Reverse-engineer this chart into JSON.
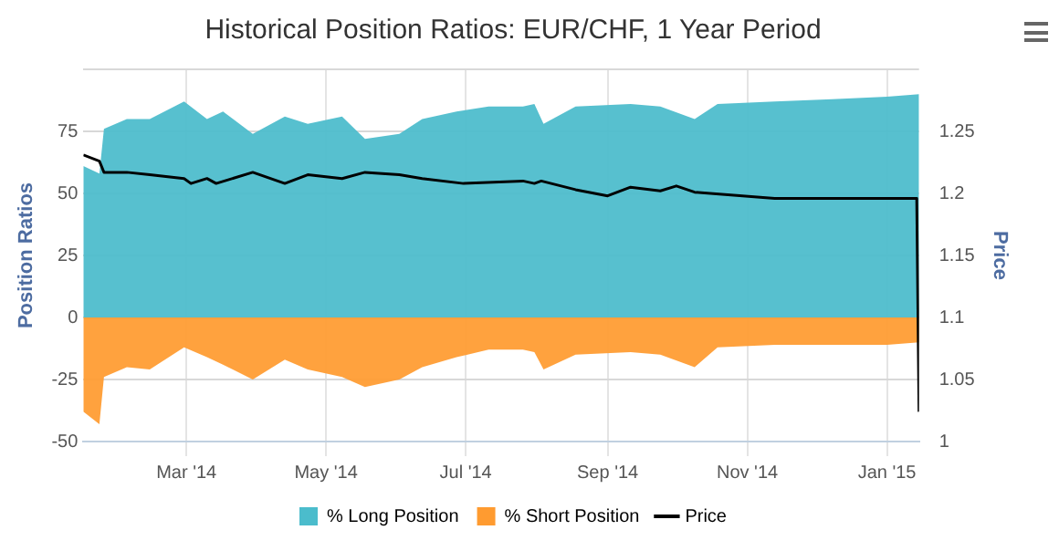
{
  "chart_data": {
    "type": "area",
    "title": "Historical Position Ratios: EUR/CHF, 1 Year Period",
    "ylabel": "Position Ratios",
    "y2label": "Price",
    "x": [
      "2014-01-15",
      "2014-01-22",
      "2014-01-24",
      "2014-02-03",
      "2014-02-13",
      "2014-02-28",
      "2014-03-10",
      "2014-03-17",
      "2014-03-30",
      "2014-04-13",
      "2014-04-23",
      "2014-05-08",
      "2014-05-18",
      "2014-06-02",
      "2014-06-12",
      "2014-06-27",
      "2014-07-11",
      "2014-07-26",
      "2014-07-31",
      "2014-08-04",
      "2014-08-18",
      "2014-09-11",
      "2014-09-24",
      "2014-10-09",
      "2014-10-19",
      "2014-11-13",
      "2014-12-08",
      "2015-01-01",
      "2015-01-15"
    ],
    "series": [
      {
        "name": "% Long Position",
        "color": "#4bbccc",
        "values": [
          61,
          58,
          76,
          80,
          80,
          87,
          80,
          83,
          74,
          81,
          78,
          81,
          72,
          74,
          80,
          83,
          85,
          85,
          86,
          78,
          85,
          86,
          85,
          80,
          86,
          87,
          88,
          89,
          90
        ]
      },
      {
        "name": "% Short Position",
        "color": "#ff9b30",
        "values": [
          -38,
          -43,
          -24,
          -20,
          -21,
          -12,
          -16,
          -19,
          -25,
          -17,
          -21,
          -24,
          -28,
          -25,
          -20,
          -16,
          -13,
          -13,
          -14,
          -21,
          -15,
          -14,
          -15,
          -20,
          -12,
          -11,
          -11,
          -11,
          -10
        ]
      },
      {
        "name": "Price",
        "type": "line",
        "axis": "y2",
        "color": "#000000",
        "x": [
          "2014-01-15",
          "2014-01-22",
          "2014-01-24",
          "2014-02-03",
          "2014-02-13",
          "2014-02-28",
          "2014-03-03",
          "2014-03-10",
          "2014-03-14",
          "2014-03-30",
          "2014-04-13",
          "2014-04-23",
          "2014-05-08",
          "2014-05-18",
          "2014-06-02",
          "2014-06-12",
          "2014-06-30",
          "2014-07-26",
          "2014-07-31",
          "2014-08-03",
          "2014-08-18",
          "2014-09-01",
          "2014-09-11",
          "2014-09-24",
          "2014-10-01",
          "2014-10-09",
          "2014-11-13",
          "2014-12-08",
          "2014-12-22",
          "2015-01-14",
          "2015-01-15"
        ],
        "values": [
          1.231,
          1.226,
          1.217,
          1.217,
          1.215,
          1.212,
          1.208,
          1.212,
          1.208,
          1.217,
          1.208,
          1.215,
          1.212,
          1.217,
          1.215,
          1.212,
          1.208,
          1.21,
          1.208,
          1.21,
          1.203,
          1.198,
          1.205,
          1.202,
          1.206,
          1.201,
          1.196,
          1.196,
          1.196,
          1.196,
          1.024
        ]
      }
    ],
    "xlim": [
      "2014-01-15",
      "2015-01-15"
    ],
    "xticks": [
      {
        "value": "2014-03-01",
        "label": "Mar '14"
      },
      {
        "value": "2014-05-01",
        "label": "May '14"
      },
      {
        "value": "2014-07-01",
        "label": "Jul '14"
      },
      {
        "value": "2014-09-01",
        "label": "Sep '14"
      },
      {
        "value": "2014-11-01",
        "label": "Nov '14"
      },
      {
        "value": "2015-01-01",
        "label": "Jan '15"
      }
    ],
    "ylim": [
      -50,
      100
    ],
    "yticks": [
      -50,
      -25,
      0,
      25,
      50,
      75,
      {
        "value": 100,
        "label": null
      }
    ],
    "y2lim": [
      1,
      1.3
    ],
    "y2ticks": [
      1,
      1.05,
      1.1,
      1.15,
      1.2,
      1.25
    ],
    "grid": true,
    "legend": "bottom",
    "marker": "none"
  }
}
